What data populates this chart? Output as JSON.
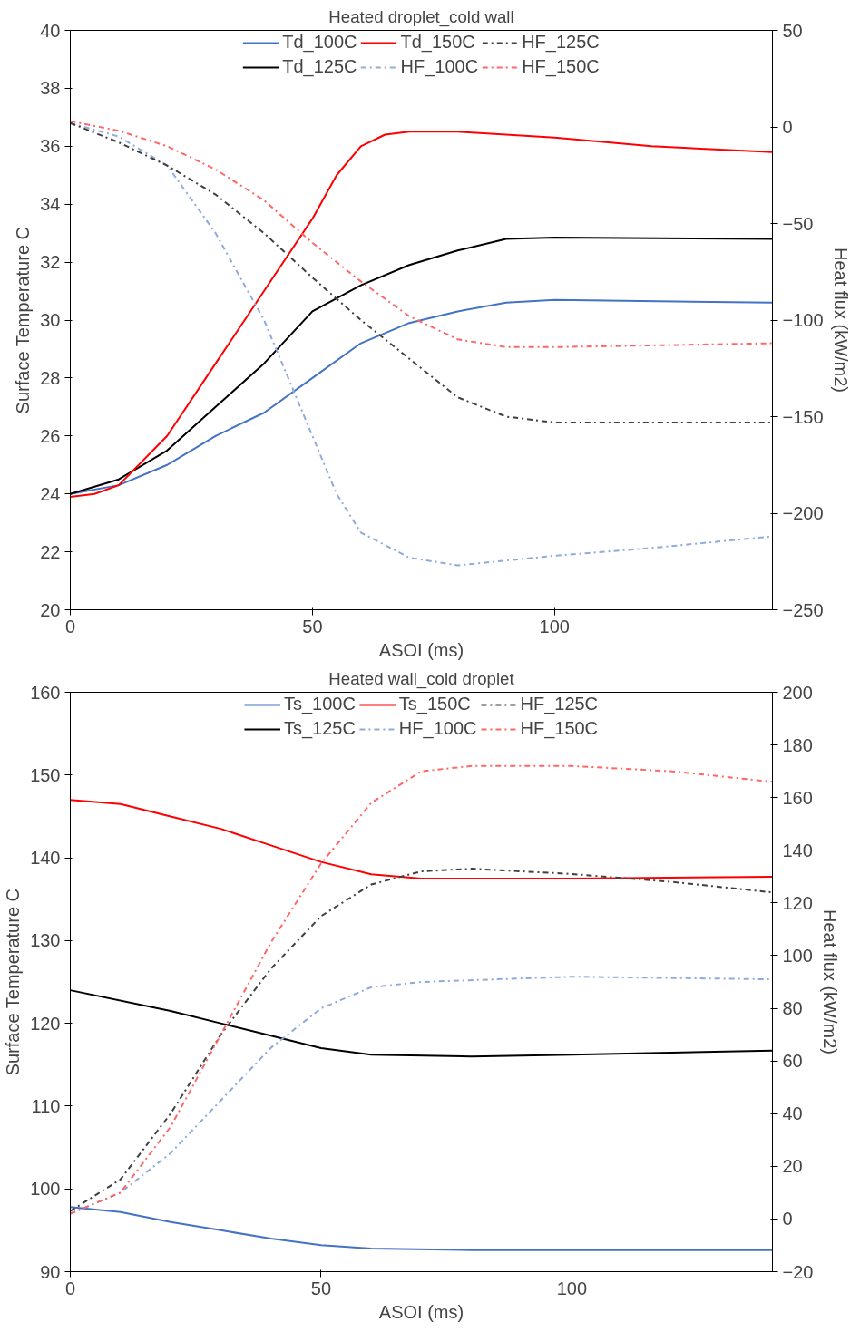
{
  "chart_data": [
    {
      "type": "line",
      "title": "Heated droplet_cold wall",
      "xlabel": "ASOI (ms)",
      "ylabel": "Surface Temperature C",
      "y2label": "Heat flux (kW/m2)",
      "xlim": [
        0,
        145
      ],
      "xticks": [
        0,
        50,
        100
      ],
      "ylim": [
        20,
        40
      ],
      "yticks": [
        20,
        22,
        24,
        26,
        28,
        30,
        32,
        34,
        36,
        38,
        40
      ],
      "y2lim": [
        -250,
        50
      ],
      "y2ticks": [
        -250,
        -200,
        -150,
        -100,
        -50,
        0,
        50
      ],
      "legend": "top",
      "series": [
        {
          "name": "Td_100C",
          "color": "#4472c4",
          "line_style": "solid",
          "x": [
            0,
            10,
            20,
            30,
            40,
            50,
            60,
            70,
            80,
            90,
            100,
            145
          ],
          "values": [
            24,
            24.3,
            25,
            26,
            26.8,
            28,
            29.2,
            29.9,
            30.3,
            30.6,
            30.7,
            30.6
          ]
        },
        {
          "name": "Td_125C",
          "color": "#000000",
          "line_style": "solid",
          "x": [
            0,
            10,
            20,
            30,
            40,
            50,
            60,
            70,
            80,
            90,
            100,
            145
          ],
          "values": [
            24,
            24.5,
            25.5,
            27,
            28.5,
            30.3,
            31.2,
            31.9,
            32.4,
            32.8,
            32.85,
            32.8
          ]
        },
        {
          "name": "Td_150C",
          "color": "#ff0000",
          "line_style": "solid",
          "x": [
            0,
            5,
            10,
            20,
            30,
            40,
            50,
            55,
            60,
            65,
            70,
            80,
            100,
            120,
            145
          ],
          "values": [
            23.9,
            24,
            24.3,
            26,
            28.5,
            31,
            33.5,
            35,
            36,
            36.4,
            36.5,
            36.5,
            36.3,
            36,
            35.8
          ]
        },
        {
          "name": "HF_100C",
          "color": "#8faadc",
          "line_style": "dashdot",
          "axis": "y2",
          "x": [
            0,
            10,
            20,
            30,
            40,
            50,
            55,
            60,
            70,
            80,
            100,
            120,
            145
          ],
          "values": [
            2,
            -5,
            -20,
            -55,
            -100,
            -160,
            -190,
            -210,
            -223,
            -227,
            -222,
            -218,
            -212
          ]
        },
        {
          "name": "HF_125C",
          "color": "#404040",
          "line_style": "dashdot",
          "axis": "y2",
          "x": [
            0,
            10,
            20,
            30,
            40,
            50,
            60,
            70,
            80,
            90,
            100,
            145
          ],
          "values": [
            2,
            -8,
            -20,
            -35,
            -55,
            -78,
            -100,
            -120,
            -140,
            -150,
            -153,
            -153
          ]
        },
        {
          "name": "HF_150C",
          "color": "#ff6666",
          "line_style": "dashdot",
          "axis": "y2",
          "x": [
            0,
            10,
            20,
            30,
            40,
            50,
            60,
            70,
            80,
            90,
            100,
            145
          ],
          "values": [
            3,
            -2,
            -10,
            -22,
            -38,
            -60,
            -80,
            -98,
            -110,
            -114,
            -114,
            -112
          ]
        }
      ]
    },
    {
      "type": "line",
      "title": "Heated wall_cold droplet",
      "xlabel": "ASOI (ms)",
      "ylabel": "Surface Temperature C",
      "y2label": "Heat flux (kW/m2)",
      "xlim": [
        0,
        140
      ],
      "xticks": [
        0,
        50,
        100
      ],
      "ylim": [
        90,
        160
      ],
      "yticks": [
        90,
        100,
        110,
        120,
        130,
        140,
        150,
        160
      ],
      "y2lim": [
        -20,
        200
      ],
      "y2ticks": [
        -20,
        0,
        20,
        40,
        60,
        80,
        100,
        120,
        140,
        160,
        180,
        200
      ],
      "legend": "top",
      "series": [
        {
          "name": "Ts_100C",
          "color": "#4472c4",
          "line_style": "solid",
          "x": [
            0,
            10,
            20,
            30,
            40,
            50,
            60,
            80,
            140
          ],
          "values": [
            97.8,
            97.2,
            96,
            95,
            94,
            93.2,
            92.8,
            92.6,
            92.6
          ]
        },
        {
          "name": "Ts_125C",
          "color": "#000000",
          "line_style": "solid",
          "x": [
            0,
            20,
            30,
            40,
            50,
            60,
            80,
            100,
            140
          ],
          "values": [
            124,
            121.5,
            120,
            118.5,
            117,
            116.2,
            116,
            116.2,
            116.7
          ]
        },
        {
          "name": "Ts_150C",
          "color": "#ff0000",
          "line_style": "solid",
          "x": [
            0,
            10,
            20,
            30,
            40,
            50,
            60,
            70,
            100,
            140
          ],
          "values": [
            147,
            146.5,
            145,
            143.5,
            141.5,
            139.5,
            138,
            137.5,
            137.5,
            137.7
          ]
        },
        {
          "name": "HF_100C",
          "color": "#8faadc",
          "line_style": "dashdot",
          "axis": "y2",
          "x": [
            0,
            10,
            20,
            30,
            40,
            50,
            60,
            70,
            100,
            140
          ],
          "values": [
            2,
            10,
            25,
            45,
            65,
            80,
            88,
            90,
            92,
            91
          ]
        },
        {
          "name": "HF_125C",
          "color": "#404040",
          "line_style": "dashdot",
          "axis": "y2",
          "x": [
            0,
            10,
            20,
            30,
            40,
            50,
            60,
            70,
            80,
            100,
            120,
            140
          ],
          "values": [
            3,
            15,
            40,
            70,
            95,
            115,
            127,
            132,
            133,
            131,
            128,
            124
          ]
        },
        {
          "name": "HF_150C",
          "color": "#ff6666",
          "line_style": "dashdot",
          "axis": "y2",
          "x": [
            0,
            10,
            20,
            30,
            40,
            50,
            60,
            70,
            80,
            100,
            120,
            140
          ],
          "values": [
            2,
            10,
            35,
            70,
            105,
            135,
            158,
            170,
            172,
            172,
            170,
            166
          ]
        }
      ]
    }
  ]
}
